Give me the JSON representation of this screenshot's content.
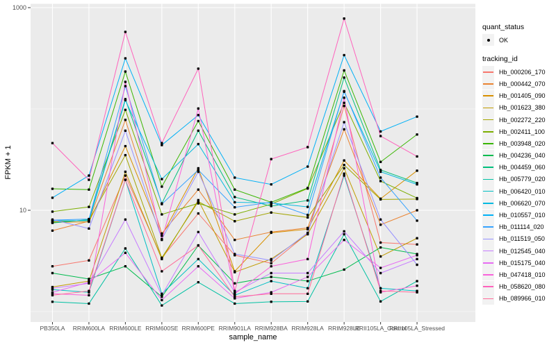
{
  "colors": {
    "background": "#FFFFFF",
    "panel_bg": "#EBEBEB",
    "grid": "#FFFFFF",
    "legend_key_bg": "#F2F2F2",
    "axis_text": "#4D4D4D",
    "tick_mark": "#333333",
    "point": "#000000"
  },
  "figure": {
    "y_axis": {
      "label": "FPKM + 1",
      "major_breaks": [
        10,
        1000
      ],
      "minor_breaks": [
        1,
        100
      ],
      "tick_labels": [
        "10",
        "1000"
      ]
    },
    "x_axis": {
      "label": "sample_name"
    },
    "legend": {
      "quant_status": {
        "title": "quant_status",
        "items": [
          {
            "label": "OK"
          }
        ]
      },
      "tracking_id": {
        "title": "tracking_id"
      }
    }
  },
  "chart_data": {
    "type": "line",
    "title": "",
    "xlabel": "sample_name",
    "ylabel": "FPKM + 1",
    "y_scale": "log10",
    "ylim": [
      0.8,
      1100
    ],
    "grid": true,
    "legend_position": "right",
    "marker": "black-point",
    "categories": [
      "PB350LA",
      "RRIM600LA",
      "RRIM600LE",
      "RRIM600SE",
      "RRIM600PE",
      "RRIM901LA",
      "RRIM928BA",
      "RRIM928LA",
      "RRIM928LE",
      "RRII105LA_Control",
      "RRII105LA_Stressed"
    ],
    "series": [
      {
        "name": "Hb_000206_170",
        "color": "#F8766D",
        "values": [
          2.8,
          3.2,
          22,
          3.4,
          9.3,
          3.6,
          3.0,
          5.9,
          107,
          4.8,
          4.6
        ]
      },
      {
        "name": "Hb_000442_070",
        "color": "#EA8331",
        "values": [
          6.3,
          7.8,
          78,
          5.9,
          16,
          5.1,
          6.1,
          6.7,
          63,
          7.2,
          10
        ]
      },
      {
        "name": "Hb_001405_090",
        "color": "#D89000",
        "values": [
          7.6,
          7.7,
          43,
          5.6,
          26,
          2.5,
          6.0,
          6.5,
          31,
          13,
          24.6
        ]
      },
      {
        "name": "Hb_001623_380",
        "color": "#C09B00",
        "values": [
          1.75,
          2.0,
          24,
          3.3,
          12.6,
          2.45,
          3.3,
          5.8,
          26,
          3.5,
          5.3
        ]
      },
      {
        "name": "Hb_002272_220",
        "color": "#A3A500",
        "values": [
          7.7,
          8.0,
          35,
          3.4,
          12.2,
          7.8,
          9.5,
          8.5,
          28,
          12.8,
          12.9
        ]
      },
      {
        "name": "Hb_002411_100",
        "color": "#7CAE00",
        "values": [
          9.7,
          10.8,
          98,
          9.1,
          11.7,
          9.1,
          11.5,
          16.4,
          115,
          19.4,
          13.2
        ]
      },
      {
        "name": "Hb_003948_020",
        "color": "#39B600",
        "values": [
          16.3,
          16,
          234,
          17.1,
          76,
          16,
          12,
          16.6,
          240,
          30,
          56
        ]
      },
      {
        "name": "Hb_004236_040",
        "color": "#00BB4E",
        "values": [
          2.4,
          2.1,
          2.8,
          1.4,
          4.5,
          1.9,
          2.2,
          2.0,
          2.6,
          4.3,
          3.7
        ]
      },
      {
        "name": "Hb_004459_060",
        "color": "#00BF7D",
        "values": [
          7.5,
          8.1,
          125,
          11.7,
          61,
          13.5,
          11,
          12.5,
          204,
          25,
          18.6
        ]
      },
      {
        "name": "Hb_005779_020",
        "color": "#00C1A3",
        "values": [
          1.25,
          1.2,
          4.2,
          1.15,
          1.95,
          1.2,
          1.25,
          1.26,
          5.8,
          1.26,
          2.0
        ]
      },
      {
        "name": "Hb_006420_010",
        "color": "#00BFC4",
        "values": [
          1.65,
          1.55,
          20,
          1.5,
          3.3,
          1.45,
          2.0,
          1.7,
          22,
          1.7,
          1.6
        ]
      },
      {
        "name": "Hb_006620_070",
        "color": "#00BAE0",
        "values": [
          7.9,
          7.9,
          122,
          20.3,
          45,
          12,
          11.8,
          10.8,
          148,
          24,
          18
        ]
      },
      {
        "name": "Hb_010557_010",
        "color": "#00B0F6",
        "values": [
          13.3,
          22,
          316,
          44,
          87,
          21,
          18,
          27,
          340,
          60,
          84
        ]
      },
      {
        "name": "Hb_011114_020",
        "color": "#35A2FF",
        "values": [
          8.0,
          8.2,
          168,
          11.5,
          25,
          10.7,
          12,
          9.0,
          150,
          21,
          7.9
        ]
      },
      {
        "name": "Hb_011519_050",
        "color": "#9590FF",
        "values": [
          8.1,
          6.6,
          61,
          5.2,
          24,
          3.7,
          3.2,
          6.0,
          74,
          8.1,
          2.9
        ]
      },
      {
        "name": "Hb_012545_040",
        "color": "#C77CFF",
        "values": [
          1.7,
          1.9,
          8.1,
          1.45,
          6.1,
          1.55,
          2.4,
          2.4,
          6.2,
          2.4,
          3.3
        ]
      },
      {
        "name": "Hb_015175_040",
        "color": "#E76BF3",
        "values": [
          1.55,
          1.95,
          3.8,
          1.3,
          2.8,
          1.35,
          1.55,
          2.2,
          5.1,
          2.7,
          3.6
        ]
      },
      {
        "name": "Hb_047418_010",
        "color": "#FA62DB",
        "values": [
          1.5,
          1.45,
          185,
          5.1,
          101,
          1.5,
          2.8,
          3.3,
          129,
          1.55,
          1.8
        ]
      },
      {
        "name": "Hb_058620_080",
        "color": "#FF62BC",
        "values": [
          46,
          20,
          576,
          46,
          250,
          1.6,
          32,
          42,
          780,
          54,
          34
        ]
      },
      {
        "name": "Hb_089966_010",
        "color": "#FF6A98",
        "values": [
          1.45,
          1.6,
          20,
          2.5,
          4.5,
          1.4,
          1.5,
          1.5,
          23,
          1.6,
          1.55
        ]
      }
    ]
  }
}
